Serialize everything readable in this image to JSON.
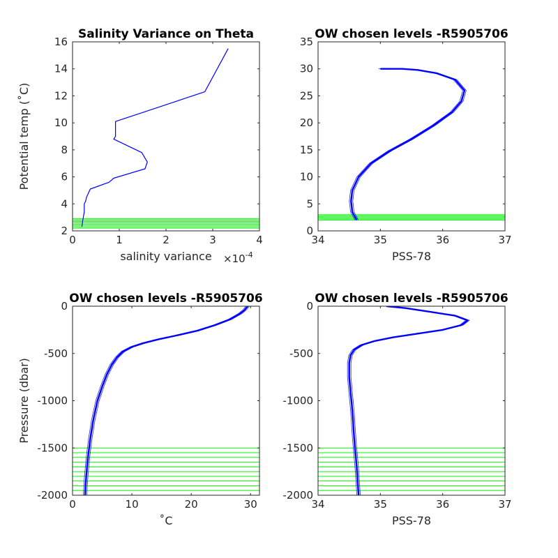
{
  "chart_data": [
    {
      "type": "line",
      "title": "Salinity Variance on Theta",
      "xlabel": "salinity variance",
      "x_exponent_label": "×10",
      "x_exponent_power": "-4",
      "ylabel": "Potential temp (˚C)",
      "xlim": [
        0,
        4
      ],
      "ylim": [
        2,
        16
      ],
      "xticks": [
        0,
        1,
        2,
        3,
        4
      ],
      "yticks": [
        2,
        4,
        6,
        8,
        10,
        12,
        14,
        16
      ],
      "xtick_labels": [
        "0",
        "1",
        "2",
        "3",
        "4"
      ],
      "ytick_labels": [
        "2",
        "4",
        "6",
        "8",
        "10",
        "12",
        "14",
        "16"
      ],
      "series": [
        {
          "color": "#0000ff",
          "x": [
            3.33,
            2.83,
            0.92,
            0.92,
            0.88,
            1.48,
            1.6,
            1.55,
            0.88,
            0.78,
            0.38,
            0.3,
            0.28,
            0.25,
            0.25,
            0.22,
            0.2
          ],
          "y": [
            15.5,
            12.3,
            10.1,
            9.0,
            8.8,
            7.8,
            7.1,
            6.6,
            5.9,
            5.6,
            5.1,
            4.5,
            4.2,
            4.0,
            3.4,
            2.8,
            2.3
          ]
        }
      ],
      "hlines": {
        "color": "#00ff00",
        "values": [
          2.2,
          2.3,
          2.4,
          2.5,
          2.6,
          2.7,
          2.8,
          2.9
        ]
      }
    },
    {
      "type": "line",
      "title": "OW chosen levels -R5905706",
      "xlabel": "PSS-78",
      "ylabel": "",
      "xlim": [
        34,
        37
      ],
      "ylim": [
        0,
        35
      ],
      "xticks": [
        34,
        35,
        36,
        37
      ],
      "yticks": [
        0,
        5,
        10,
        15,
        20,
        25,
        30,
        35
      ],
      "xtick_labels": [
        "34",
        "35",
        "36",
        "37"
      ],
      "ytick_labels": [
        "0",
        "5",
        "10",
        "15",
        "20",
        "25",
        "30",
        "35"
      ],
      "series": [
        {
          "color": "#0000ff",
          "x": [
            34.62,
            34.55,
            34.53,
            34.55,
            34.65,
            34.85,
            35.15,
            35.5,
            35.85,
            36.15,
            36.3,
            36.35,
            36.2,
            35.9,
            35.6,
            35.35,
            35.0
          ],
          "y": [
            2.0,
            3.5,
            5.5,
            7.5,
            10.0,
            12.5,
            14.8,
            17.0,
            19.5,
            22.0,
            24.0,
            26.0,
            28.0,
            29.2,
            29.8,
            30.0,
            30.0
          ]
        }
      ],
      "hlines": {
        "color": "#00ff00",
        "values": [
          2.0,
          2.2,
          2.4,
          2.6,
          2.8,
          3.0
        ]
      }
    },
    {
      "type": "line",
      "title": "OW chosen levels -R5905706",
      "xlabel": "˚C",
      "ylabel": "Pressure (dbar)",
      "xlim": [
        0,
        31.5
      ],
      "ylim": [
        -2000,
        0
      ],
      "xticks": [
        0,
        10,
        20,
        30
      ],
      "yticks": [
        -2000,
        -1500,
        -1000,
        -500,
        0
      ],
      "xtick_labels": [
        "0",
        "10",
        "20",
        "30"
      ],
      "ytick_labels": [
        "-2000",
        "-1500",
        "-1000",
        "-500",
        "0"
      ],
      "series": [
        {
          "color": "#0000ff",
          "x": [
            2.1,
            2.3,
            2.6,
            3.0,
            3.5,
            4.2,
            5.0,
            5.8,
            6.6,
            7.5,
            8.5,
            10.0,
            12.0,
            14.5,
            17.5,
            21.0,
            24.0,
            26.5,
            28.2,
            29.0,
            29.5
          ],
          "y": [
            -2000,
            -1800,
            -1600,
            -1400,
            -1200,
            -1000,
            -850,
            -720,
            -620,
            -540,
            -480,
            -430,
            -390,
            -350,
            -310,
            -260,
            -200,
            -140,
            -80,
            -40,
            0
          ]
        }
      ],
      "hlines": {
        "color": "#00ff00",
        "values": [
          -1500,
          -1550,
          -1600,
          -1650,
          -1700,
          -1750,
          -1800,
          -1850,
          -1900,
          -1950,
          -2000
        ]
      }
    },
    {
      "type": "line",
      "title": "OW chosen levels -R5905706",
      "xlabel": "PSS-78",
      "ylabel": "",
      "xlim": [
        34,
        37
      ],
      "ylim": [
        -2000,
        0
      ],
      "xticks": [
        34,
        35,
        36,
        37
      ],
      "yticks": [
        -2000,
        -1500,
        -1000,
        -500,
        0
      ],
      "xtick_labels": [
        "34",
        "35",
        "36",
        "37"
      ],
      "ytick_labels": [
        "-2000",
        "-1500",
        "-1000",
        "-500",
        "0"
      ],
      "series": [
        {
          "color": "#0000ff",
          "x": [
            34.65,
            34.62,
            34.58,
            34.55,
            34.52,
            34.5,
            34.5,
            34.52,
            34.58,
            34.7,
            34.9,
            35.2,
            35.6,
            36.0,
            36.3,
            36.4,
            36.2,
            35.8,
            35.4,
            35.1
          ],
          "y": [
            -2000,
            -1700,
            -1400,
            -1100,
            -900,
            -750,
            -600,
            -520,
            -460,
            -410,
            -370,
            -330,
            -290,
            -250,
            -200,
            -150,
            -100,
            -60,
            -20,
            0
          ]
        }
      ],
      "hlines": {
        "color": "#00ff00",
        "values": [
          -1500,
          -1550,
          -1600,
          -1650,
          -1700,
          -1750,
          -1800,
          -1850,
          -1900,
          -1950,
          -2000
        ]
      }
    }
  ]
}
